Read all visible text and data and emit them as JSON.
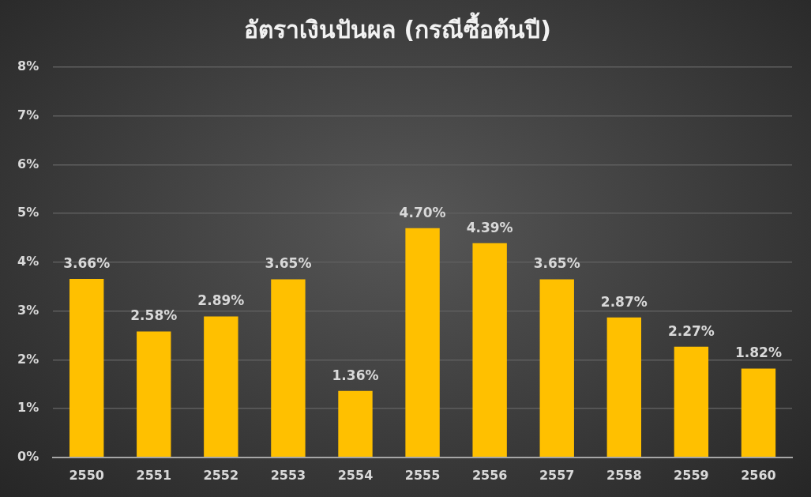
{
  "chart_data": {
    "type": "bar",
    "title": "อัตราเงินปันผล (กรณีซื้อต้นปี)",
    "categories": [
      "2550",
      "2551",
      "2552",
      "2553",
      "2554",
      "2555",
      "2556",
      "2557",
      "2558",
      "2559",
      "2560"
    ],
    "values": [
      3.66,
      2.58,
      2.89,
      3.65,
      1.36,
      4.7,
      4.39,
      3.65,
      2.87,
      2.27,
      1.82
    ],
    "value_labels": [
      "3.66%",
      "2.58%",
      "2.89%",
      "3.65%",
      "1.36%",
      "4.70%",
      "4.39%",
      "3.65%",
      "2.87%",
      "2.27%",
      "1.82%"
    ],
    "color": "#ffc000",
    "ylim": [
      0,
      8
    ],
    "yticks": [
      {
        "value": 0,
        "label": "0%"
      },
      {
        "value": 1,
        "label": "1%"
      },
      {
        "value": 2,
        "label": "2%"
      },
      {
        "value": 3,
        "label": "3%"
      },
      {
        "value": 4,
        "label": "4%"
      },
      {
        "value": 5,
        "label": "5%"
      },
      {
        "value": 6,
        "label": "6%"
      },
      {
        "value": 7,
        "label": "7%"
      },
      {
        "value": 8,
        "label": "8%"
      }
    ],
    "grid": "y"
  }
}
